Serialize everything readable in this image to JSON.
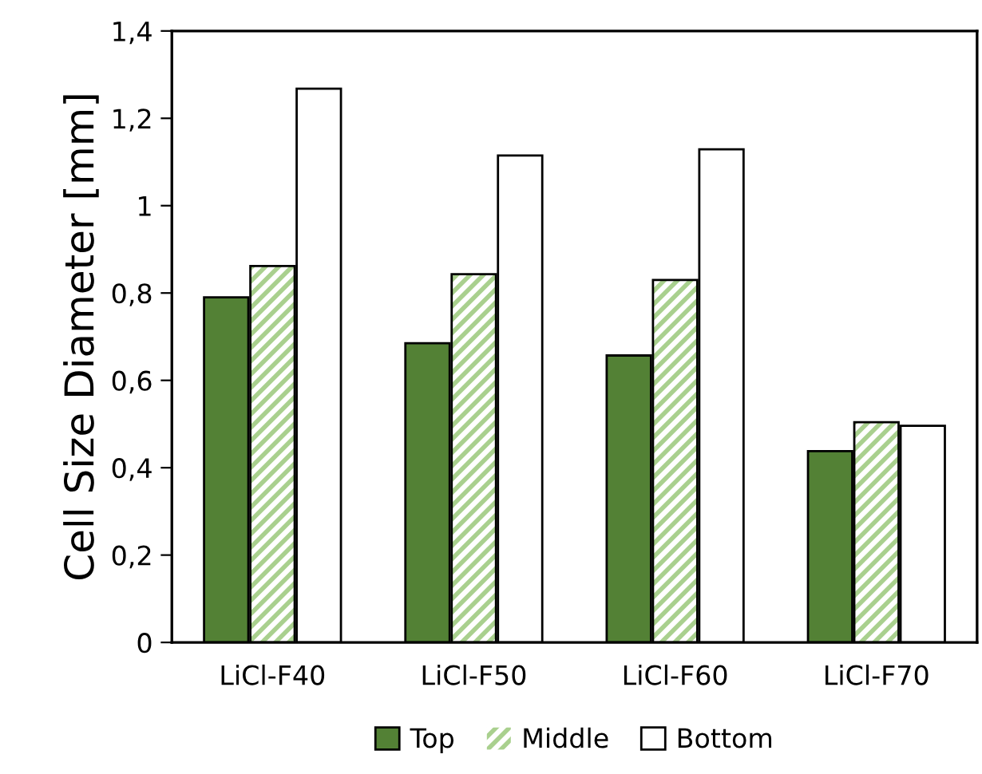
{
  "chart_data": {
    "type": "bar",
    "ylabel": "Cell Size Diameter [mm]",
    "categories": [
      "LiCl-F40",
      "LiCl-F50",
      "LiCl-F60",
      "LiCl-F70"
    ],
    "series": [
      {
        "name": "Top",
        "color": "#538135",
        "values": [
          0.79,
          0.685,
          0.657,
          0.438
        ]
      },
      {
        "name": "Middle",
        "color": "#a9d08e",
        "values": [
          0.862,
          0.843,
          0.83,
          0.504
        ]
      },
      {
        "name": "Bottom",
        "color": "#ffffff",
        "values": [
          1.268,
          1.115,
          1.129,
          0.496
        ]
      }
    ],
    "ylim": [
      0,
      1.4
    ],
    "yticks": [
      {
        "value": 0,
        "label": "0"
      },
      {
        "value": 0.2,
        "label": "0,2"
      },
      {
        "value": 0.4,
        "label": "0,4"
      },
      {
        "value": 0.6,
        "label": "0,6"
      },
      {
        "value": 0.8,
        "label": "0,8"
      },
      {
        "value": 1,
        "label": "1"
      },
      {
        "value": 1.2,
        "label": "1,2"
      },
      {
        "value": 1.4,
        "label": "1,4"
      }
    ],
    "grid": false,
    "legend": "bottom"
  }
}
